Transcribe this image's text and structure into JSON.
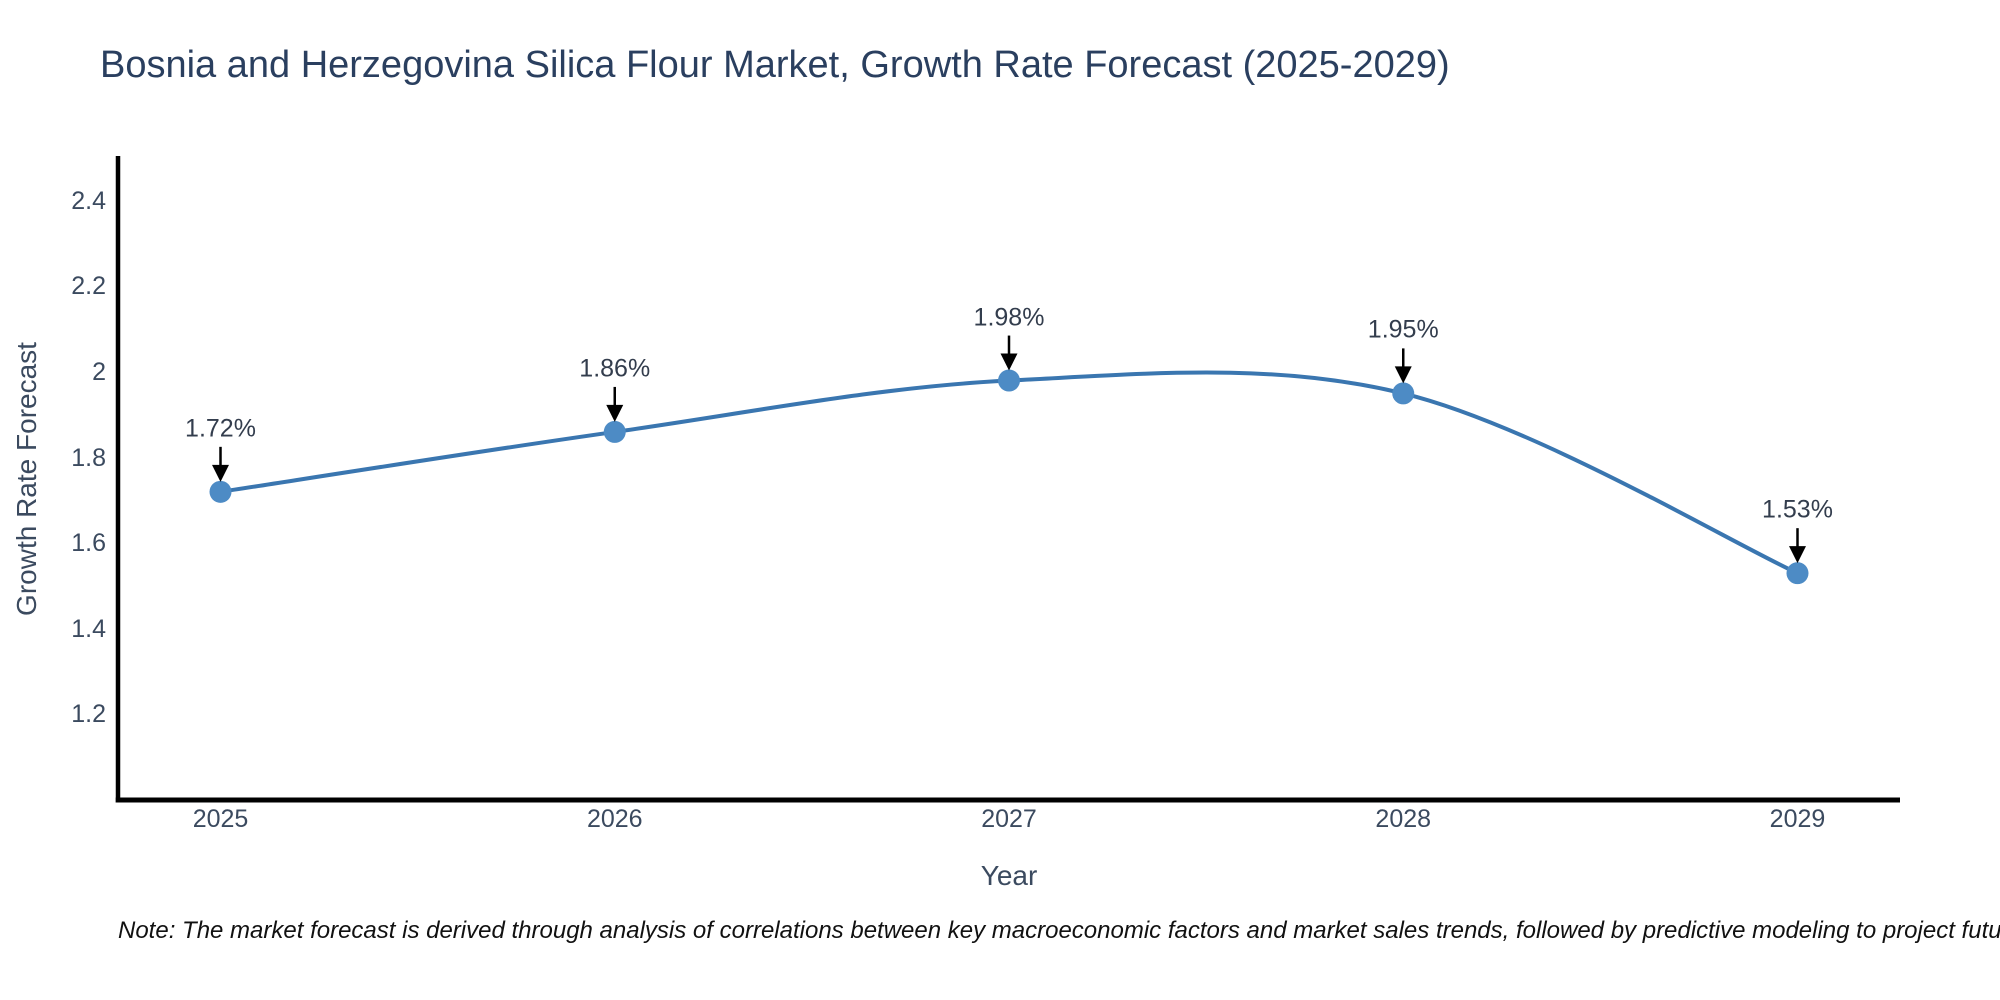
{
  "title": "Bosnia and Herzegovina Silica Flour Market, Growth Rate Forecast (2025-2029)",
  "note": "Note: The market forecast is derived through analysis of correlations between key macroeconomic factors and market sales trends, followed by predictive modeling to project future sales",
  "chart_data": {
    "type": "line",
    "title": "Bosnia and Herzegovina Silica Flour Market, Growth Rate Forecast (2025-2029)",
    "xlabel": "Year",
    "ylabel": "Growth Rate Forecast",
    "x": [
      2025,
      2026,
      2027,
      2028,
      2029
    ],
    "series": [
      {
        "name": "Growth Rate Forecast",
        "values": [
          1.72,
          1.86,
          1.98,
          1.95,
          1.53
        ]
      }
    ],
    "point_labels": [
      "1.72%",
      "1.86%",
      "1.98%",
      "1.95%",
      "1.53%"
    ],
    "xtick_labels": [
      "2025",
      "2026",
      "2027",
      "2028",
      "2029"
    ],
    "ytick_labels": [
      "2.4",
      "2.2",
      "2",
      "1.8",
      "1.6",
      "1.4",
      "1.2"
    ],
    "ytick_values": [
      2.4,
      2.2,
      2.0,
      1.8,
      1.6,
      1.4,
      1.2
    ],
    "xlim": [
      2024.74,
      2029.26
    ],
    "ylim": [
      1.0,
      2.5
    ],
    "grid": false,
    "legend": "none",
    "line_shape": "spline",
    "annotation_style": "value label above point with downward black arrow",
    "colors": {
      "line": "#3a76b0",
      "marker": "#4d8bc5",
      "axis": "#000000",
      "arrow": "#000000",
      "title_text": "#2a3f5f",
      "tick_text": "#3b4a5f",
      "annotation_text": "#333d4d",
      "background": "#ffffff"
    }
  }
}
